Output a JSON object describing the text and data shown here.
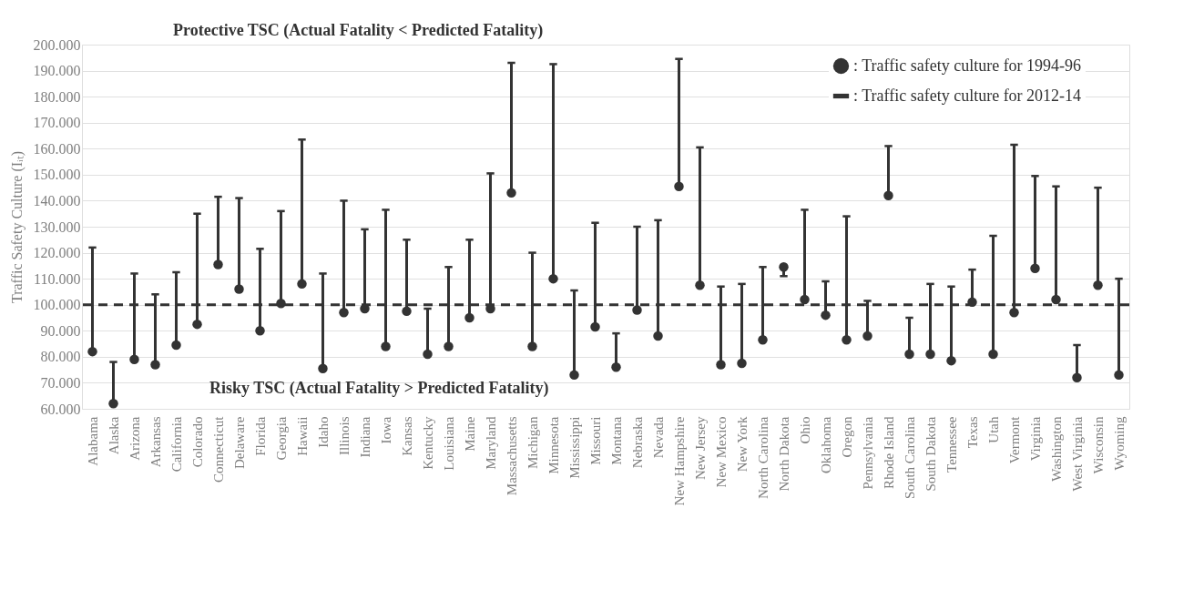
{
  "chart_data": {
    "type": "scatter",
    "ylabel": "Traffic Safety Culture (Iᵢₜ)",
    "annotations": [
      "Protective TSC (Actual Fatality < Predicted Fatality)",
      "Risky TSC (Actual Fatality > Predicted Fatality)"
    ],
    "categories": [
      "Alabama",
      "Alaska",
      "Arizona",
      "Arkansas",
      "California",
      "Colorado",
      "Connecticut",
      "Delaware",
      "Florida",
      "Georgia",
      "Hawaii",
      "Idaho",
      "Illinois",
      "Indiana",
      "Iowa",
      "Kansas",
      "Kentucky",
      "Louisiana",
      "Maine",
      "Maryland",
      "Massachusetts",
      "Michigan",
      "Minnesota",
      "Mississippi",
      "Missouri",
      "Montana",
      "Nebraska",
      "Nevada",
      "New Hampshire",
      "New Jersey",
      "New Mexico",
      "New York",
      "North Carolina",
      "North Dakota",
      "Ohio",
      "Oklahoma",
      "Oregon",
      "Pennsylvania",
      "Rhode Island",
      "South Carolina",
      "South Dakota",
      "Tennessee",
      "Texas",
      "Utah",
      "Vermont",
      "Virginia",
      "Washington",
      "West Virginia",
      "Wisconsin",
      "Wyoming"
    ],
    "series": [
      {
        "name": ": Traffic safety culture for 1994-96",
        "color": "#333333",
        "marker": "circle",
        "values": [
          82,
          62,
          79,
          77,
          84.5,
          92.5,
          115.5,
          106,
          90,
          100.5,
          108,
          75.5,
          97,
          98.5,
          84,
          97.5,
          81,
          84,
          95,
          98.5,
          143,
          84,
          110,
          73,
          91.5,
          76,
          98,
          88,
          145.5,
          107.5,
          77,
          77.5,
          86.5,
          114.5,
          102,
          96,
          86.5,
          88,
          142,
          81,
          81,
          78.5,
          101,
          81,
          97,
          114,
          102,
          72,
          107.5,
          73
        ]
      },
      {
        "name": ": Traffic safety culture for 2012-14",
        "color": "#333333",
        "marker": "square",
        "values": [
          122,
          78,
          112,
          104,
          112.5,
          135,
          141.5,
          141,
          121.5,
          136,
          163.5,
          112,
          140,
          129,
          136.5,
          125,
          98.5,
          114.5,
          125,
          150.5,
          193,
          120,
          192.5,
          105.5,
          131.5,
          89,
          130,
          132.5,
          194.5,
          160.5,
          107,
          108,
          114.5,
          111,
          136.5,
          109,
          134,
          101.5,
          161,
          95,
          108,
          107,
          113.5,
          126.5,
          161.5,
          149.5,
          145.5,
          84.5,
          145,
          110
        ]
      }
    ],
    "ylim": [
      60,
      200
    ],
    "yticks": [
      {
        "value": 60,
        "label": "60.000"
      },
      {
        "value": 70,
        "label": "70.000"
      },
      {
        "value": 80,
        "label": "80.000"
      },
      {
        "value": 90,
        "label": "90.000"
      },
      {
        "value": 100,
        "label": "100.000"
      },
      {
        "value": 110,
        "label": "110.000"
      },
      {
        "value": 120,
        "label": "120.000"
      },
      {
        "value": 130,
        "label": "130.000"
      },
      {
        "value": 140,
        "label": "140.000"
      },
      {
        "value": 150,
        "label": "150.000"
      },
      {
        "value": 160,
        "label": "160.000"
      },
      {
        "value": 170,
        "label": "170.000"
      },
      {
        "value": 180,
        "label": "180.000"
      },
      {
        "value": 190,
        "label": "190.000"
      },
      {
        "value": 200,
        "label": "200.000"
      }
    ],
    "ref_lines": [
      {
        "axis": "y",
        "value": 100,
        "color": "#333333",
        "line_style": "dashed"
      }
    ],
    "grid": "y",
    "legend": "top right"
  }
}
